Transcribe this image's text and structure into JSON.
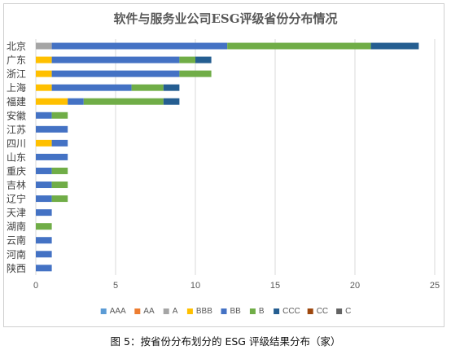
{
  "caption": "图 5：按省份分布划分的 ESG 评级结果分布（家）",
  "chart_data": {
    "type": "bar",
    "orientation": "horizontal",
    "stacked": true,
    "title": "软件与服务业公司ESG评级省份分布情况",
    "xlabel": "",
    "ylabel": "",
    "xlim": [
      0,
      25
    ],
    "xticks": [
      0,
      5,
      10,
      15,
      20,
      25
    ],
    "grid": true,
    "legend_position": "bottom",
    "categories": [
      "北京",
      "广东",
      "浙江",
      "上海",
      "福建",
      "安徽",
      "江苏",
      "四川",
      "山东",
      "重庆",
      "吉林",
      "辽宁",
      "天津",
      "湖南",
      "云南",
      "河南",
      "陕西"
    ],
    "series": [
      {
        "name": "AAA",
        "color": "#5b9bd5",
        "values": [
          0,
          0,
          0,
          0,
          0,
          0,
          0,
          0,
          0,
          0,
          0,
          0,
          0,
          0,
          0,
          0,
          0
        ]
      },
      {
        "name": "AA",
        "color": "#ed7d31",
        "values": [
          0,
          0,
          0,
          0,
          0,
          0,
          0,
          0,
          0,
          0,
          0,
          0,
          0,
          0,
          0,
          0,
          0
        ]
      },
      {
        "name": "A",
        "color": "#a5a5a5",
        "values": [
          1,
          0,
          0,
          0,
          0,
          0,
          0,
          0,
          0,
          0,
          0,
          0,
          0,
          0,
          0,
          0,
          0
        ]
      },
      {
        "name": "BBB",
        "color": "#ffc000",
        "values": [
          0,
          1,
          1,
          1,
          2,
          0,
          0,
          1,
          0,
          0,
          0,
          0,
          0,
          0,
          0,
          0,
          0
        ]
      },
      {
        "name": "BB",
        "color": "#4472c4",
        "values": [
          11,
          8,
          8,
          5,
          1,
          1,
          2,
          1,
          2,
          1,
          1,
          1,
          1,
          0,
          1,
          1,
          1
        ]
      },
      {
        "name": "B",
        "color": "#70ad47",
        "values": [
          9,
          1,
          2,
          2,
          5,
          1,
          0,
          0,
          0,
          1,
          1,
          1,
          0,
          1,
          0,
          0,
          0
        ]
      },
      {
        "name": "CCC",
        "color": "#255e91",
        "values": [
          3,
          1,
          0,
          1,
          1,
          0,
          0,
          0,
          0,
          0,
          0,
          0,
          0,
          0,
          0,
          0,
          0
        ]
      },
      {
        "name": "CC",
        "color": "#9e480e",
        "values": [
          0,
          0,
          0,
          0,
          0,
          0,
          0,
          0,
          0,
          0,
          0,
          0,
          0,
          0,
          0,
          0,
          0
        ]
      },
      {
        "name": "C",
        "color": "#636363",
        "values": [
          0,
          0,
          0,
          0,
          0,
          0,
          0,
          0,
          0,
          0,
          0,
          0,
          0,
          0,
          0,
          0,
          0
        ]
      }
    ]
  }
}
